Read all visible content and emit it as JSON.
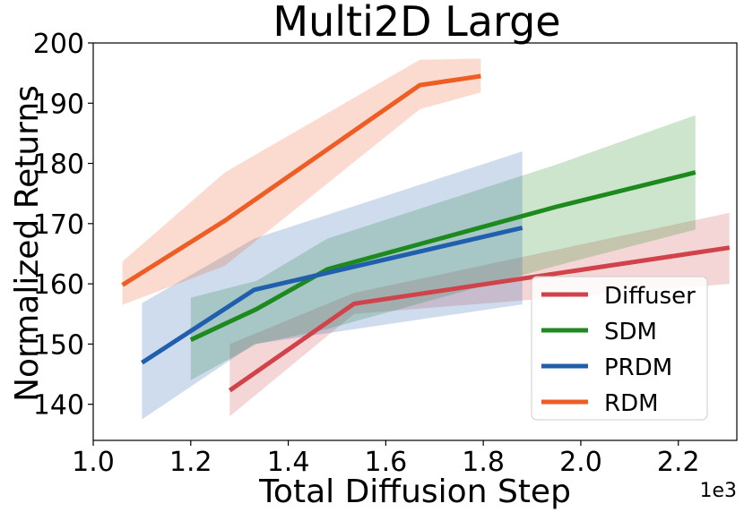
{
  "chart_data": {
    "type": "line",
    "title": "Multi2D Large",
    "xlabel": "Total Diffusion Step",
    "ylabel": "Normalized Returns",
    "x_offset_label": "1e3",
    "xlim": [
      1.0,
      2.32
    ],
    "ylim": [
      134,
      200
    ],
    "xticks": [
      1.0,
      1.2,
      1.4,
      1.6,
      1.8,
      2.0,
      2.2
    ],
    "xtick_labels": [
      "1.0",
      "1.2",
      "1.4",
      "1.6",
      "1.8",
      "2.0",
      "2.2"
    ],
    "yticks": [
      140,
      150,
      160,
      170,
      180,
      190,
      200
    ],
    "ytick_labels": [
      "140",
      "150",
      "160",
      "170",
      "180",
      "190",
      "200"
    ],
    "legend_position": "lower-right",
    "series": [
      {
        "name": "Diffuser",
        "color": "#d0434a",
        "x": [
          1.28,
          1.535,
          2.305
        ],
        "values": [
          142.3,
          156.7,
          166.0
        ],
        "upper": [
          150.0,
          158.5,
          171.8
        ],
        "lower": [
          138.0,
          155.0,
          160.0
        ]
      },
      {
        "name": "SDM",
        "color": "#1d8a1d",
        "x": [
          1.2,
          1.335,
          1.48,
          1.95,
          2.235
        ],
        "values": [
          150.7,
          155.8,
          162.4,
          172.8,
          178.5
        ],
        "upper": [
          157.7,
          160.5,
          167.5,
          179.8,
          188.0
        ],
        "lower": [
          144.0,
          150.0,
          152.5,
          163.0,
          169.0
        ]
      },
      {
        "name": "PRDM",
        "color": "#1f5fad",
        "x": [
          1.1,
          1.33,
          1.88
        ],
        "values": [
          146.9,
          159.0,
          169.3
        ],
        "upper": [
          156.8,
          167.5,
          182.0
        ],
        "lower": [
          137.5,
          150.0,
          156.6
        ]
      },
      {
        "name": "RDM",
        "color": "#ee5d24",
        "x": [
          1.06,
          1.27,
          1.67,
          1.795
        ],
        "values": [
          159.8,
          170.5,
          193.0,
          194.5
        ],
        "upper": [
          163.7,
          178.5,
          197.2,
          197.4
        ],
        "lower": [
          156.5,
          163.0,
          189.0,
          191.8
        ]
      }
    ]
  }
}
